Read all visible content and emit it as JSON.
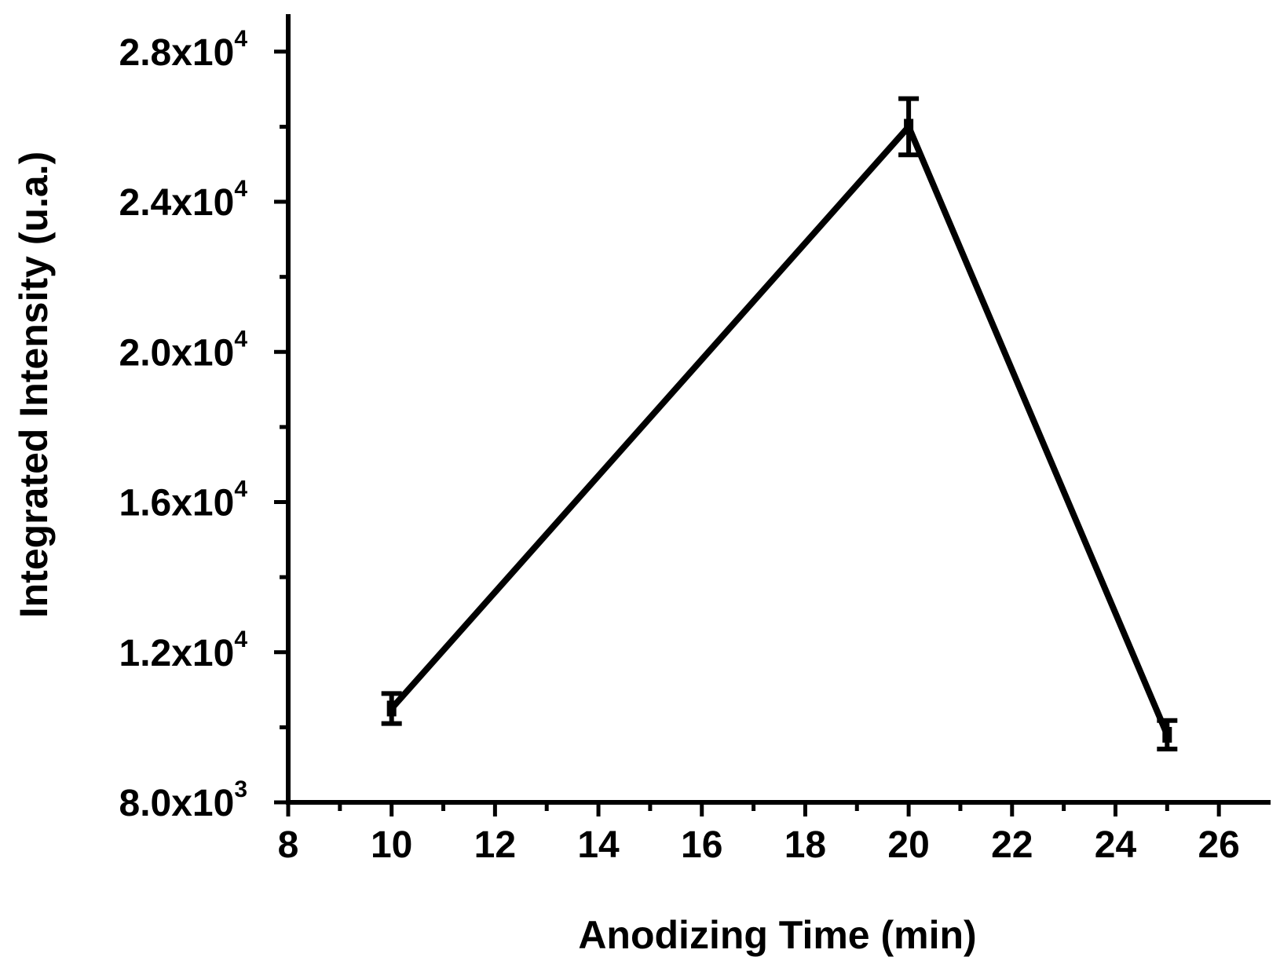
{
  "chart_data": {
    "type": "line",
    "xlabel": "Anodizing Time (min)",
    "ylabel": "Integrated Intensity (u.a.)",
    "xlim": [
      8,
      27
    ],
    "ylim": [
      8000,
      29000
    ],
    "x_ticks": [
      8,
      10,
      12,
      14,
      16,
      18,
      20,
      22,
      24,
      26
    ],
    "y_ticks": [
      {
        "value": 8000,
        "mantissa": "8.0x10",
        "exp": "3"
      },
      {
        "value": 12000,
        "mantissa": "1.2x10",
        "exp": "4"
      },
      {
        "value": 16000,
        "mantissa": "1.6x10",
        "exp": "4"
      },
      {
        "value": 20000,
        "mantissa": "2.0x10",
        "exp": "4"
      },
      {
        "value": 24000,
        "mantissa": "2.4x10",
        "exp": "4"
      },
      {
        "value": 28000,
        "mantissa": "2.8x10",
        "exp": "4"
      }
    ],
    "grid": false,
    "series": [
      {
        "x": [
          10,
          20,
          25
        ],
        "y": [
          10500,
          26000,
          9800
        ],
        "yerr": [
          400,
          750,
          380
        ],
        "color": "#000000"
      }
    ]
  }
}
